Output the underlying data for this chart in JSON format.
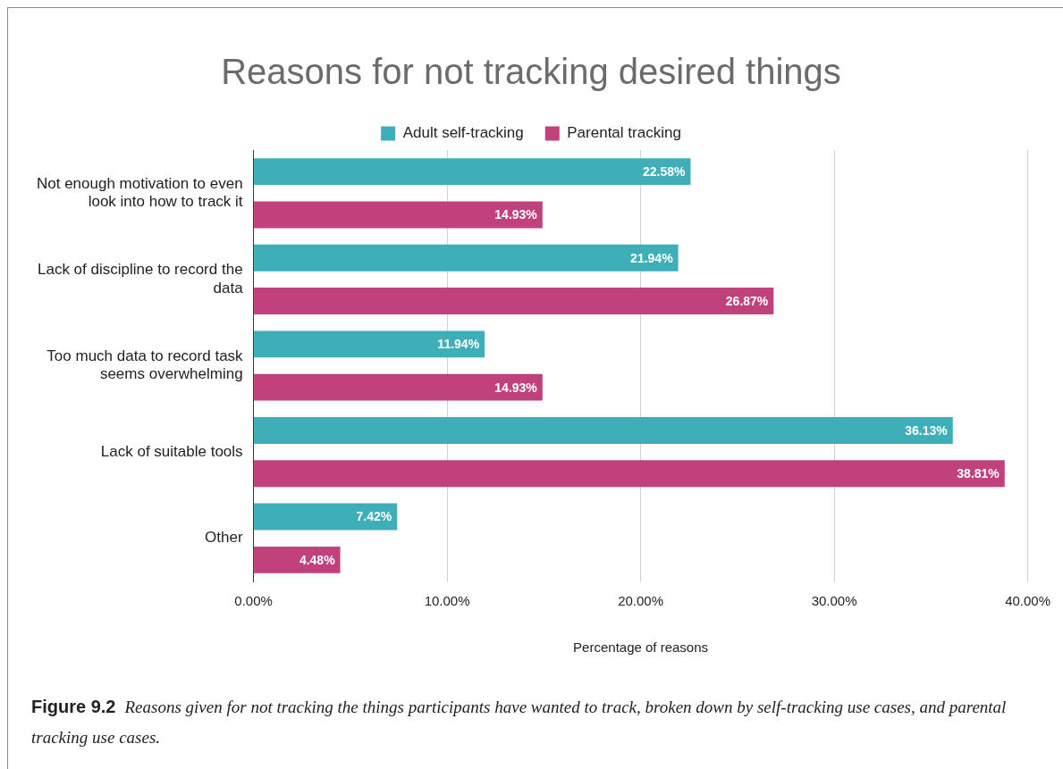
{
  "chart_data": {
    "type": "bar",
    "orientation": "horizontal",
    "title": "Reasons for not tracking desired things",
    "xlabel": "Percentage of reasons",
    "categories": [
      "Not enough motivation to even look into how to track it",
      "Lack of discipline to record the data",
      "Too much data to record task seems overwhelming",
      "Lack of suitable tools",
      "Other"
    ],
    "series": [
      {
        "name": "Adult self-tracking",
        "color": "#3eaeb8",
        "values": [
          22.58,
          21.94,
          11.94,
          36.13,
          7.42
        ],
        "value_labels": [
          "22.58%",
          "21.94%",
          "11.94%",
          "36.13%",
          "7.42%"
        ]
      },
      {
        "name": "Parental tracking",
        "color": "#c0417c",
        "values": [
          14.93,
          26.87,
          14.93,
          38.81,
          4.48
        ],
        "value_labels": [
          "14.93%",
          "26.87%",
          "14.93%",
          "38.81%",
          "4.48%"
        ]
      }
    ],
    "xlim": [
      0,
      40
    ],
    "xticks": [
      {
        "value": 0,
        "label": "0.00%"
      },
      {
        "value": 10,
        "label": "10.00%"
      },
      {
        "value": 20,
        "label": "20.00%"
      },
      {
        "value": 30,
        "label": "30.00%"
      },
      {
        "value": 40,
        "label": "40.00%"
      }
    ],
    "grid": "x",
    "legend": "top",
    "annotations": [
      "Figure 9.2",
      "Reasons given for not tracking the things participants have wanted to track, broken down by self-tracking use cases, and parental tracking use cases."
    ]
  }
}
